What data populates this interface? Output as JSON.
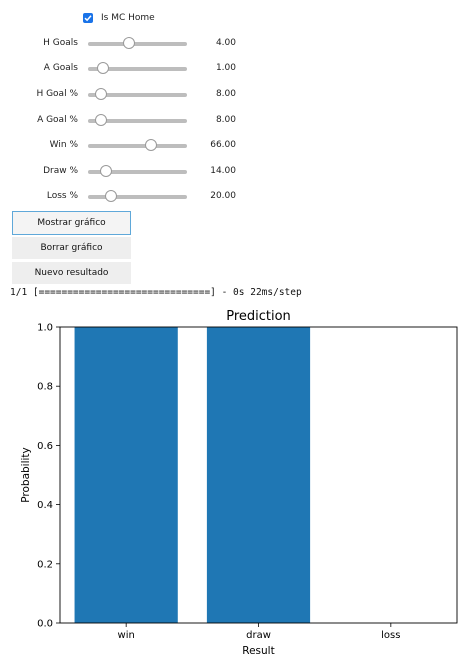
{
  "controls": {
    "is_mc_home": {
      "label": "Is MC Home",
      "checked": true
    },
    "sliders": [
      {
        "label": "H Goals",
        "value": "4.00",
        "fraction": 0.4
      },
      {
        "label": "A Goals",
        "value": "1.00",
        "fraction": 0.1
      },
      {
        "label": "H Goal %",
        "value": "8.00",
        "fraction": 0.08
      },
      {
        "label": "A Goal %",
        "value": "8.00",
        "fraction": 0.08
      },
      {
        "label": "Win %",
        "value": "66.00",
        "fraction": 0.66
      },
      {
        "label": "Draw %",
        "value": "14.00",
        "fraction": 0.14
      },
      {
        "label": "Loss %",
        "value": "20.00",
        "fraction": 0.2
      }
    ],
    "buttons": {
      "show_chart": "Mostrar gráfico",
      "clear_chart": "Borrar gráfico",
      "new_result": "Nuevo resultado"
    }
  },
  "console_output": "1/1 [==============================] - 0s 22ms/step",
  "chart_data": {
    "type": "bar",
    "title": "Prediction",
    "xlabel": "Result",
    "ylabel": "Probability",
    "categories": [
      "win",
      "draw",
      "loss"
    ],
    "values": [
      1.0,
      1.0,
      0.0
    ],
    "ylim": [
      0.0,
      1.0
    ],
    "yticks": [
      "0.0",
      "0.2",
      "0.4",
      "0.6",
      "0.8",
      "1.0"
    ],
    "bar_color": "#1f77b4",
    "grid": false
  },
  "colors": {
    "checkbox": "#1a73e8",
    "focus_border": "#5fa8d9"
  }
}
